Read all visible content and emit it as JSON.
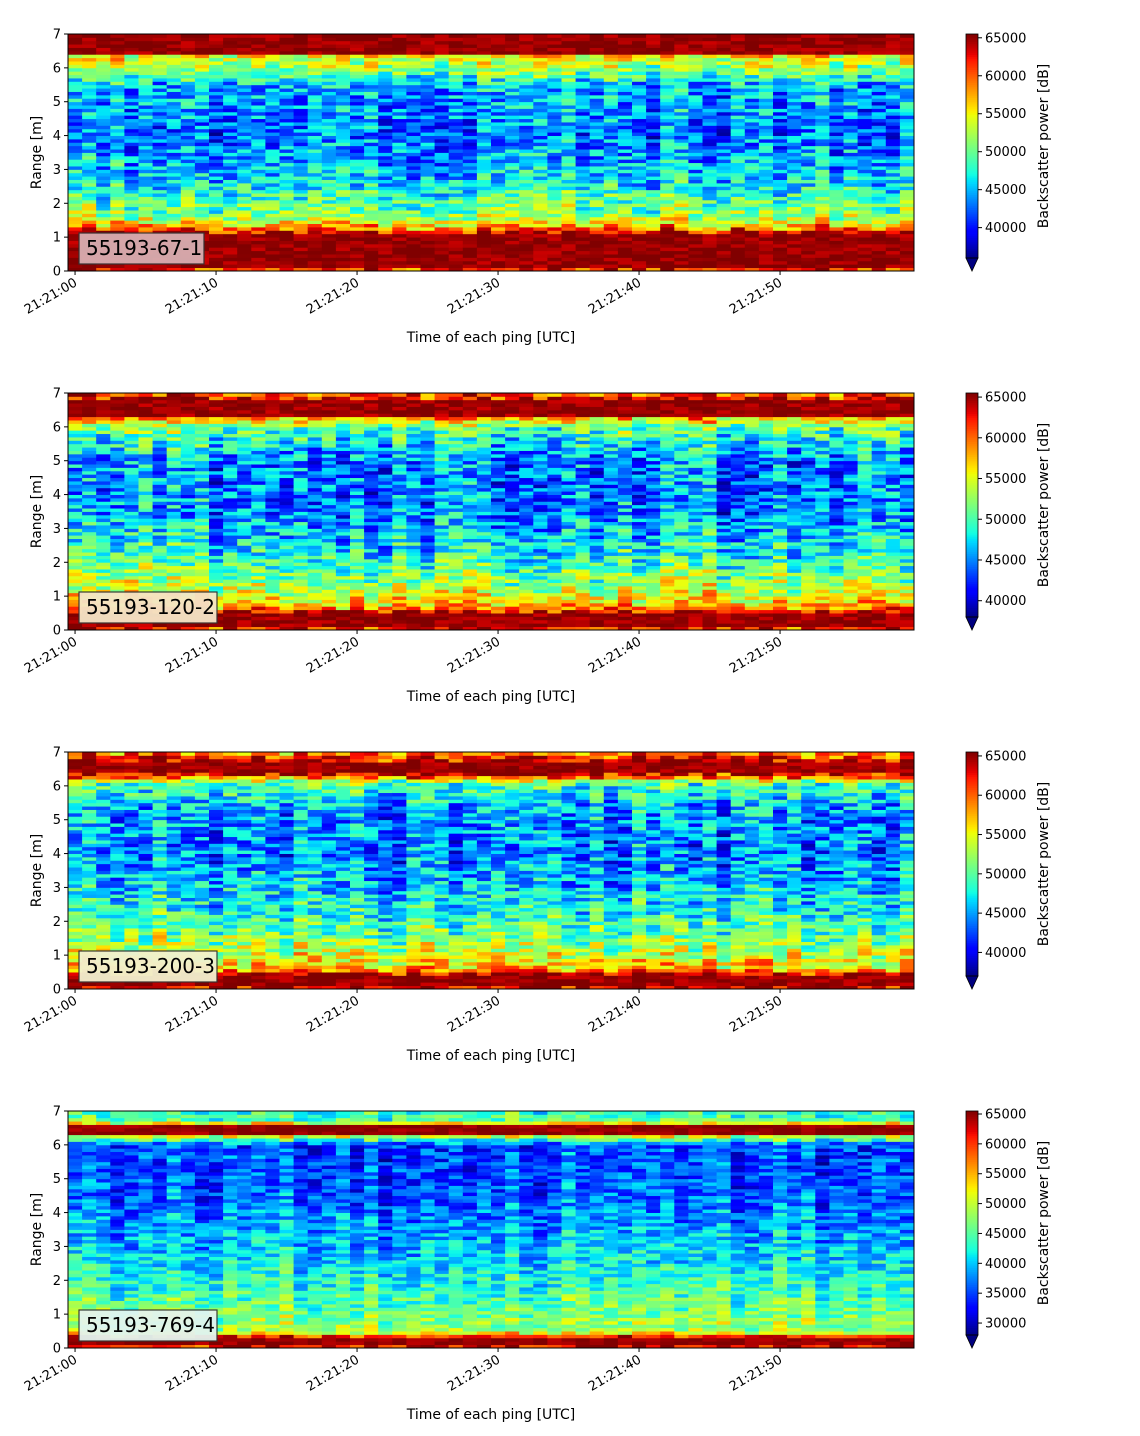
{
  "chart_data": [
    {
      "type": "heatmap",
      "panel_label": "55193-67-1",
      "label_bg": "#d8aeb2",
      "xlabel": "Time of each ping [UTC]",
      "ylabel": "Range [m]",
      "colorbar_label": "Backscatter power [dB]",
      "x_ticks": [
        "21:21:00",
        "21:21:10",
        "21:21:20",
        "21:21:30",
        "21:21:40",
        "21:21:50"
      ],
      "y_ticks": [
        "0",
        "1",
        "2",
        "3",
        "4",
        "5",
        "6",
        "7"
      ],
      "ylim": [
        0,
        7
      ],
      "x_range_seconds": [
        -0.5,
        59.5
      ],
      "colorbar_ticks": [
        "40000",
        "45000",
        "50000",
        "55000",
        "60000",
        "65000"
      ],
      "clim": [
        36000,
        65500
      ],
      "colormap": "jet",
      "colorbar_extend": "min",
      "profile": [
        {
          "range_m": 0.0,
          "power": 60000
        },
        {
          "range_m": 0.15,
          "power": 65000
        },
        {
          "range_m": 1.1,
          "power": 65000
        },
        {
          "range_m": 1.3,
          "power": 58000
        },
        {
          "range_m": 1.6,
          "power": 52000
        },
        {
          "range_m": 2.5,
          "power": 47000
        },
        {
          "range_m": 4.0,
          "power": 43000
        },
        {
          "range_m": 5.5,
          "power": 45000
        },
        {
          "range_m": 5.8,
          "power": 50000
        },
        {
          "range_m": 6.35,
          "power": 55000
        },
        {
          "range_m": 6.45,
          "power": 65000
        },
        {
          "range_m": 7.0,
          "power": 65000
        }
      ]
    },
    {
      "type": "heatmap",
      "panel_label": "55193-120-2",
      "label_bg": "#f5e6c8",
      "xlabel": "Time of each ping [UTC]",
      "ylabel": "Range [m]",
      "colorbar_label": "Backscatter power [dB]",
      "x_ticks": [
        "21:21:00",
        "21:21:10",
        "21:21:20",
        "21:21:30",
        "21:21:40",
        "21:21:50"
      ],
      "y_ticks": [
        "0",
        "1",
        "2",
        "3",
        "4",
        "5",
        "6",
        "7"
      ],
      "ylim": [
        0,
        7
      ],
      "x_range_seconds": [
        -0.5,
        59.5
      ],
      "colorbar_ticks": [
        "40000",
        "45000",
        "50000",
        "55000",
        "60000",
        "65000"
      ],
      "clim": [
        38000,
        65500
      ],
      "colormap": "jet",
      "colorbar_extend": "min",
      "profile": [
        {
          "range_m": 0.0,
          "power": 62000
        },
        {
          "range_m": 0.15,
          "power": 65000
        },
        {
          "range_m": 0.5,
          "power": 65000
        },
        {
          "range_m": 0.7,
          "power": 58000
        },
        {
          "range_m": 1.2,
          "power": 54000
        },
        {
          "range_m": 2.2,
          "power": 49000
        },
        {
          "range_m": 3.5,
          "power": 45000
        },
        {
          "range_m": 5.0,
          "power": 45000
        },
        {
          "range_m": 6.0,
          "power": 51000
        },
        {
          "range_m": 6.25,
          "power": 58000
        },
        {
          "range_m": 6.35,
          "power": 65000
        },
        {
          "range_m": 6.75,
          "power": 65000
        },
        {
          "range_m": 7.0,
          "power": 60000
        }
      ]
    },
    {
      "type": "heatmap",
      "panel_label": "55193-200-3",
      "label_bg": "#f2f1cf",
      "xlabel": "Time of each ping [UTC]",
      "ylabel": "Range [m]",
      "colorbar_label": "Backscatter power [dB]",
      "x_ticks": [
        "21:21:00",
        "21:21:10",
        "21:21:20",
        "21:21:30",
        "21:21:40",
        "21:21:50"
      ],
      "y_ticks": [
        "0",
        "1",
        "2",
        "3",
        "4",
        "5",
        "6",
        "7"
      ],
      "ylim": [
        0,
        7
      ],
      "x_range_seconds": [
        -0.5,
        59.5
      ],
      "colorbar_ticks": [
        "40000",
        "45000",
        "50000",
        "55000",
        "60000",
        "65000"
      ],
      "clim": [
        37000,
        65500
      ],
      "colormap": "jet",
      "colorbar_extend": "min",
      "profile": [
        {
          "range_m": 0.0,
          "power": 62000
        },
        {
          "range_m": 0.1,
          "power": 65000
        },
        {
          "range_m": 0.4,
          "power": 65000
        },
        {
          "range_m": 0.6,
          "power": 57000
        },
        {
          "range_m": 1.2,
          "power": 53000
        },
        {
          "range_m": 2.3,
          "power": 48000
        },
        {
          "range_m": 4.0,
          "power": 44000
        },
        {
          "range_m": 5.3,
          "power": 45000
        },
        {
          "range_m": 6.1,
          "power": 50000
        },
        {
          "range_m": 6.3,
          "power": 62000
        },
        {
          "range_m": 6.4,
          "power": 65000
        },
        {
          "range_m": 6.7,
          "power": 65000
        },
        {
          "range_m": 7.0,
          "power": 58000
        }
      ]
    },
    {
      "type": "heatmap",
      "panel_label": "55193-769-4",
      "label_bg": "#e3f4ef",
      "xlabel": "Time of each ping [UTC]",
      "ylabel": "Range [m]",
      "colorbar_label": "Backscatter power [dB]",
      "x_ticks": [
        "21:21:00",
        "21:21:10",
        "21:21:20",
        "21:21:30",
        "21:21:40",
        "21:21:50"
      ],
      "y_ticks": [
        "0",
        "1",
        "2",
        "3",
        "4",
        "5",
        "6",
        "7"
      ],
      "ylim": [
        0,
        7
      ],
      "x_range_seconds": [
        -0.5,
        59.5
      ],
      "colorbar_ticks": [
        "30000",
        "35000",
        "40000",
        "45000",
        "50000",
        "55000",
        "60000",
        "65000"
      ],
      "clim": [
        28000,
        65500
      ],
      "colormap": "jet",
      "colorbar_extend": "min",
      "profile": [
        {
          "range_m": 0.0,
          "power": 60000
        },
        {
          "range_m": 0.1,
          "power": 65000
        },
        {
          "range_m": 0.3,
          "power": 65000
        },
        {
          "range_m": 0.5,
          "power": 48000
        },
        {
          "range_m": 1.2,
          "power": 46000
        },
        {
          "range_m": 2.5,
          "power": 41000
        },
        {
          "range_m": 4.5,
          "power": 36000
        },
        {
          "range_m": 6.0,
          "power": 35000
        },
        {
          "range_m": 6.25,
          "power": 50000
        },
        {
          "range_m": 6.35,
          "power": 65000
        },
        {
          "range_m": 6.55,
          "power": 65000
        },
        {
          "range_m": 6.7,
          "power": 45000
        },
        {
          "range_m": 7.0,
          "power": 44000
        }
      ]
    }
  ]
}
